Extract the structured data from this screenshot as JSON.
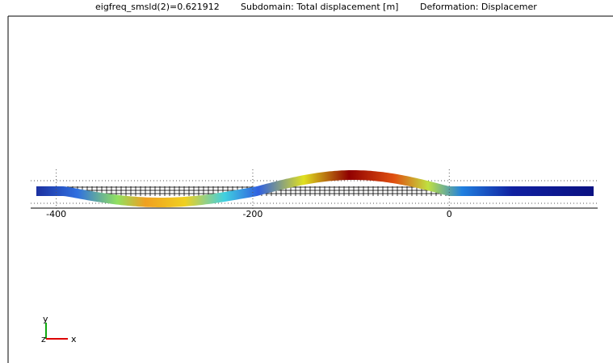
{
  "header": {
    "frequency": "eigfreq_smsld(2)=0.621912",
    "subdomain": "Subdomain: Total displacement [m]",
    "deformation": "Deformation: Displacemer"
  },
  "axis": {
    "xlim": [
      -426,
      151
    ],
    "xticks": [
      -400,
      -200,
      0
    ]
  },
  "triad": {
    "y": "y",
    "z": "z",
    "x": "x"
  }
}
